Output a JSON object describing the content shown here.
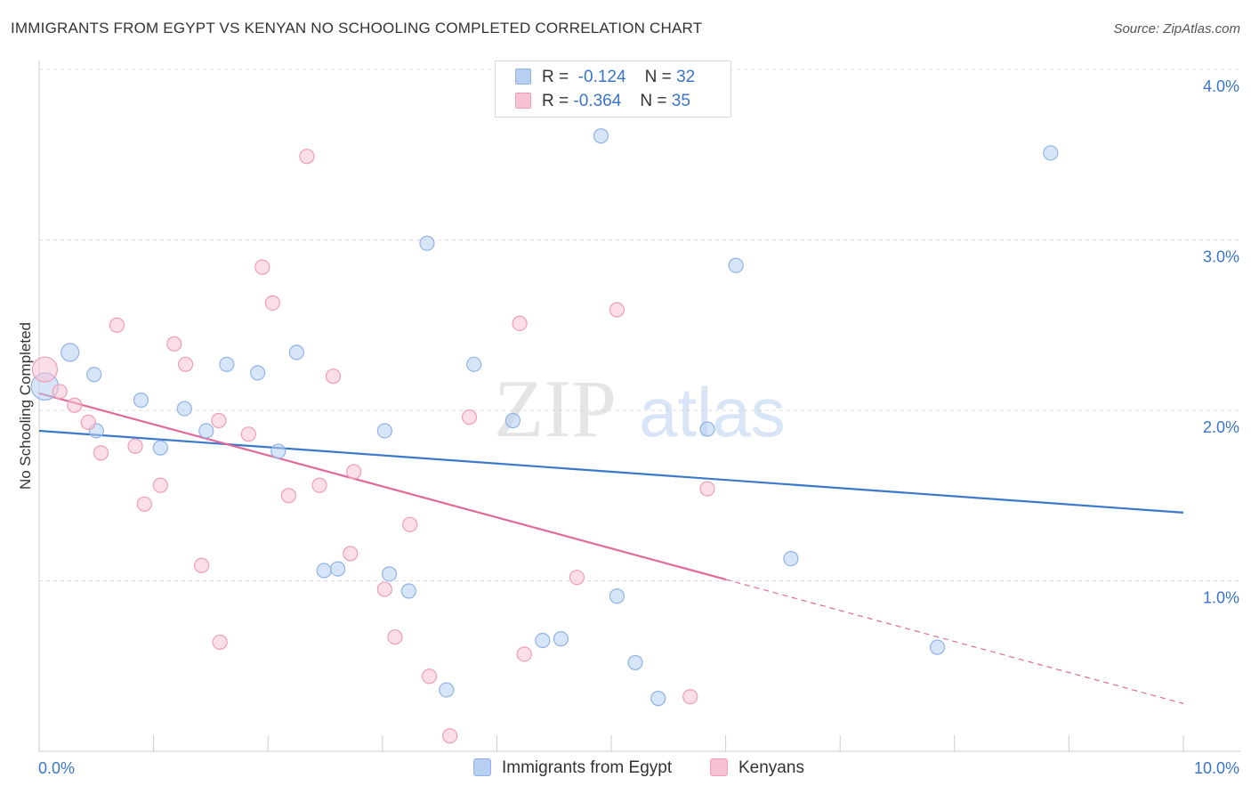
{
  "header": {
    "title": "IMMIGRANTS FROM EGYPT VS KENYAN NO SCHOOLING COMPLETED CORRELATION CHART",
    "source": "Source: ZipAtlas.com"
  },
  "watermark": {
    "zip": "ZIP",
    "atlas": "atlas"
  },
  "colors": {
    "blue_fill": "#b7d0f2",
    "blue_stroke": "#8fb3e6",
    "blue_line": "#3a78c9",
    "pink_fill": "#f7c3d4",
    "pink_stroke": "#ee9db8",
    "pink_line": "#e0699a",
    "tick_label": "#3a74c9",
    "grid": "#dcdcdc"
  },
  "legend": {
    "rows": [
      {
        "r_label": "R =",
        "r_value": "-0.124",
        "n_label": "N =",
        "n_value": "32"
      },
      {
        "r_label": "R =",
        "r_value": "-0.364",
        "n_label": "N =",
        "n_value": "35"
      }
    ]
  },
  "bottom_legend": {
    "series1": "Immigrants from Egypt",
    "series2": "Kenyans"
  },
  "chart_data": {
    "type": "scatter",
    "title": "IMMIGRANTS FROM EGYPT VS KENYAN NO SCHOOLING COMPLETED CORRELATION CHART",
    "xlabel": "",
    "ylabel": "No Schooling Completed",
    "xlim": [
      0,
      10
    ],
    "ylim": [
      0,
      4.0
    ],
    "x_tick_labels": [
      "0.0%",
      "10.0%"
    ],
    "y_ticks": [
      1.0,
      2.0,
      3.0,
      4.0
    ],
    "y_tick_labels": [
      "1.0%",
      "2.0%",
      "3.0%",
      "4.0%"
    ],
    "grid": true,
    "legend_position": "top-center",
    "series": [
      {
        "name": "Immigrants from Egypt",
        "color": "blue",
        "r": -0.124,
        "n": 32,
        "trend": {
          "x0": 0.0,
          "y0": 1.88,
          "x1": 10.0,
          "y1": 1.4,
          "dashed_from": 10.0
        },
        "points": [
          [
            0.05,
            2.14,
            1.9
          ],
          [
            0.27,
            2.34,
            1.25
          ],
          [
            0.48,
            2.21,
            1
          ],
          [
            0.5,
            1.88,
            1
          ],
          [
            0.89,
            2.06,
            1
          ],
          [
            1.06,
            1.78,
            1
          ],
          [
            1.27,
            2.01,
            1
          ],
          [
            1.46,
            1.88,
            1
          ],
          [
            1.64,
            2.27,
            1
          ],
          [
            1.91,
            2.22,
            1
          ],
          [
            2.09,
            1.76,
            1
          ],
          [
            2.25,
            2.34,
            1
          ],
          [
            2.49,
            1.06,
            1
          ],
          [
            2.61,
            1.07,
            1
          ],
          [
            3.02,
            1.88,
            1
          ],
          [
            3.06,
            1.04,
            1
          ],
          [
            3.23,
            0.94,
            1
          ],
          [
            3.39,
            2.98,
            1
          ],
          [
            3.56,
            0.36,
            1
          ],
          [
            3.8,
            2.27,
            1
          ],
          [
            4.14,
            1.94,
            1
          ],
          [
            4.4,
            0.65,
            1
          ],
          [
            4.56,
            0.66,
            1
          ],
          [
            4.91,
            3.61,
            1
          ],
          [
            5.05,
            0.91,
            1
          ],
          [
            5.21,
            0.52,
            1
          ],
          [
            5.41,
            0.31,
            1
          ],
          [
            5.84,
            1.89,
            1
          ],
          [
            6.09,
            2.85,
            1
          ],
          [
            6.57,
            1.13,
            1
          ],
          [
            7.85,
            0.61,
            1
          ],
          [
            8.84,
            3.51,
            1
          ]
        ]
      },
      {
        "name": "Kenyans",
        "color": "pink",
        "r": -0.364,
        "n": 35,
        "trend": {
          "x0": 0.0,
          "y0": 2.1,
          "x1": 10.0,
          "y1": 0.28,
          "dashed_from": 6.0
        },
        "points": [
          [
            0.05,
            2.24,
            1.75
          ],
          [
            0.18,
            2.11,
            1
          ],
          [
            0.31,
            2.03,
            1
          ],
          [
            0.43,
            1.93,
            1
          ],
          [
            0.54,
            1.75,
            1
          ],
          [
            0.68,
            2.5,
            1
          ],
          [
            0.84,
            1.79,
            1
          ],
          [
            0.92,
            1.45,
            1
          ],
          [
            1.06,
            1.56,
            1
          ],
          [
            1.18,
            2.39,
            1
          ],
          [
            1.28,
            2.27,
            1
          ],
          [
            1.42,
            1.09,
            1
          ],
          [
            1.58,
            0.64,
            1
          ],
          [
            1.57,
            1.94,
            1
          ],
          [
            1.83,
            1.86,
            1
          ],
          [
            1.95,
            2.84,
            1
          ],
          [
            2.04,
            2.63,
            1
          ],
          [
            2.18,
            1.5,
            1
          ],
          [
            2.34,
            3.49,
            1
          ],
          [
            2.45,
            1.56,
            1
          ],
          [
            2.57,
            2.2,
            1
          ],
          [
            2.72,
            1.16,
            1
          ],
          [
            2.75,
            1.64,
            1
          ],
          [
            3.02,
            0.95,
            1
          ],
          [
            3.11,
            0.67,
            1
          ],
          [
            3.24,
            1.33,
            1
          ],
          [
            3.41,
            0.44,
            1
          ],
          [
            3.59,
            0.09,
            1
          ],
          [
            3.76,
            1.96,
            1
          ],
          [
            4.2,
            2.51,
            1
          ],
          [
            4.24,
            0.57,
            1
          ],
          [
            4.7,
            1.02,
            1
          ],
          [
            5.05,
            2.59,
            1
          ],
          [
            5.69,
            0.32,
            1
          ],
          [
            5.84,
            1.54,
            1
          ]
        ]
      }
    ]
  }
}
